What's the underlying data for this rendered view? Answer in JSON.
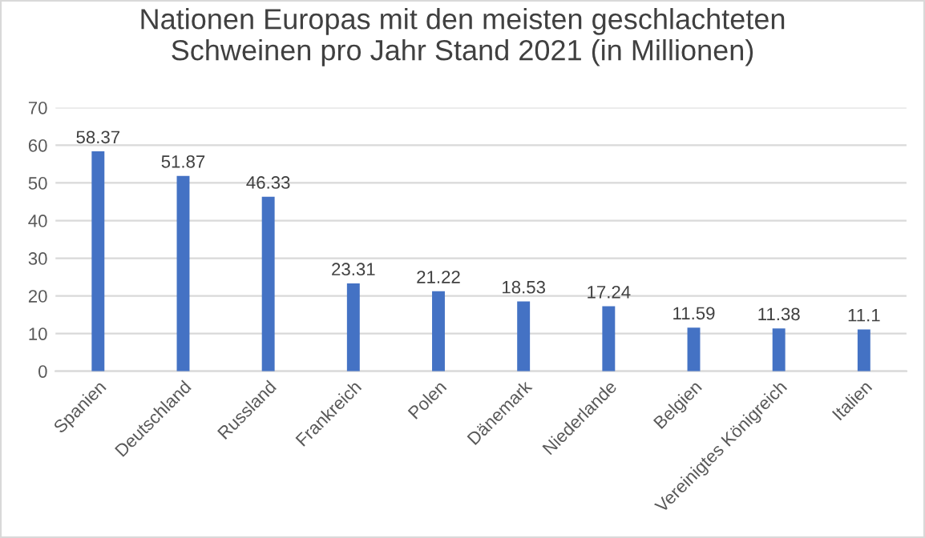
{
  "chart_data": {
    "type": "bar",
    "title": "Nationen Europas mit den meisten geschlachteten\nSchweinen pro Jahr Stand 2021 (in Millionen)",
    "categories": [
      "Spanien",
      "Deutschland",
      "Russland",
      "Frankreich",
      "Polen",
      "Dänemark",
      "Niederlande",
      "Belgien",
      "Vereinigtes Königreich",
      "Italien"
    ],
    "values": [
      58.37,
      51.87,
      46.33,
      23.31,
      21.22,
      18.53,
      17.24,
      11.59,
      11.38,
      11.1
    ],
    "color": "#4472c4",
    "ylim": [
      0,
      70
    ],
    "yticks": [
      0,
      10,
      20,
      30,
      40,
      50,
      60,
      70
    ],
    "grid": "y",
    "data_labels": true,
    "legend": false
  }
}
